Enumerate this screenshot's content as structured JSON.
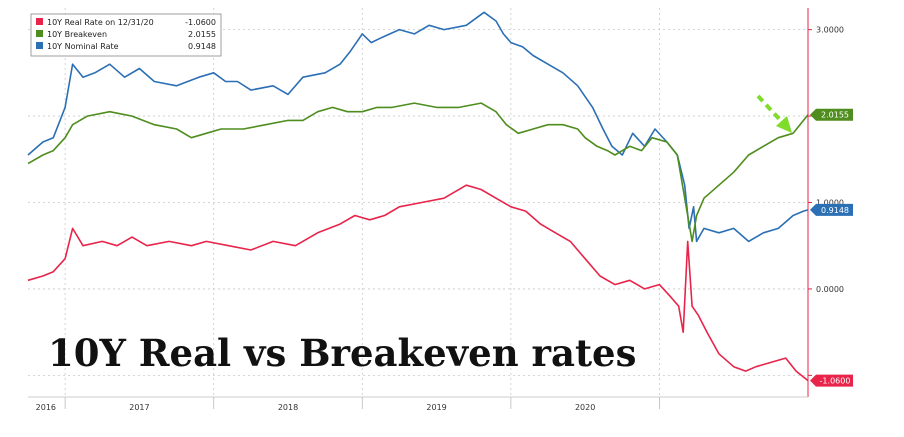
{
  "chart_data": {
    "type": "line",
    "title": "10Y Real vs Breakeven  rates",
    "x_ticks": [
      "2016",
      "2017",
      "2018",
      "2019",
      "2020"
    ],
    "y_ticks": [
      {
        "value": 3.0,
        "label": "3.0000"
      },
      {
        "value": 2.0,
        "label": ""
      },
      {
        "value": 1.0,
        "label": "1.0000"
      },
      {
        "value": 0.0,
        "label": "0.0000"
      },
      {
        "value": -1.0,
        "label": ""
      }
    ],
    "ylim": [
      -1.25,
      3.25
    ],
    "xlim": [
      2015.75,
      2021.0
    ],
    "legend_placement": "top-left",
    "legend": [
      {
        "label": "10Y Real Rate on 12/31/20",
        "value": "-1.0600",
        "color": "#e8244a"
      },
      {
        "label": "10Y Breakeven",
        "value": "2.0155",
        "color": "#4e8d1e"
      },
      {
        "label": "10Y Nominal Rate",
        "value": "0.9148",
        "color": "#2b6fb5"
      }
    ],
    "series": [
      {
        "key": "nominal",
        "color": "#2b6fb5",
        "last_label": "0.9148",
        "points": [
          [
            2015.75,
            1.55
          ],
          [
            2015.85,
            1.7
          ],
          [
            2015.92,
            1.75
          ],
          [
            2016.0,
            2.1
          ],
          [
            2016.05,
            2.6
          ],
          [
            2016.12,
            2.45
          ],
          [
            2016.2,
            2.5
          ],
          [
            2016.3,
            2.6
          ],
          [
            2016.4,
            2.45
          ],
          [
            2016.5,
            2.55
          ],
          [
            2016.6,
            2.4
          ],
          [
            2016.75,
            2.35
          ],
          [
            2016.9,
            2.45
          ],
          [
            2017.0,
            2.5
          ],
          [
            2017.08,
            2.4
          ],
          [
            2017.16,
            2.4
          ],
          [
            2017.25,
            2.3
          ],
          [
            2017.4,
            2.35
          ],
          [
            2017.5,
            2.25
          ],
          [
            2017.6,
            2.45
          ],
          [
            2017.75,
            2.5
          ],
          [
            2017.85,
            2.6
          ],
          [
            2017.92,
            2.75
          ],
          [
            2018.0,
            2.95
          ],
          [
            2018.06,
            2.85
          ],
          [
            2018.12,
            2.9
          ],
          [
            2018.25,
            3.0
          ],
          [
            2018.35,
            2.95
          ],
          [
            2018.45,
            3.05
          ],
          [
            2018.55,
            3.0
          ],
          [
            2018.7,
            3.05
          ],
          [
            2018.82,
            3.2
          ],
          [
            2018.9,
            3.1
          ],
          [
            2018.95,
            2.95
          ],
          [
            2019.0,
            2.85
          ],
          [
            2019.08,
            2.8
          ],
          [
            2019.15,
            2.7
          ],
          [
            2019.25,
            2.6
          ],
          [
            2019.35,
            2.5
          ],
          [
            2019.45,
            2.35
          ],
          [
            2019.55,
            2.1
          ],
          [
            2019.62,
            1.85
          ],
          [
            2019.68,
            1.65
          ],
          [
            2019.75,
            1.55
          ],
          [
            2019.82,
            1.8
          ],
          [
            2019.9,
            1.65
          ],
          [
            2019.97,
            1.85
          ],
          [
            2020.05,
            1.7
          ],
          [
            2020.12,
            1.55
          ],
          [
            2020.17,
            1.2
          ],
          [
            2020.2,
            0.7
          ],
          [
            2020.23,
            0.95
          ],
          [
            2020.25,
            0.55
          ],
          [
            2020.3,
            0.7
          ],
          [
            2020.4,
            0.65
          ],
          [
            2020.5,
            0.7
          ],
          [
            2020.6,
            0.55
          ],
          [
            2020.7,
            0.65
          ],
          [
            2020.8,
            0.7
          ],
          [
            2020.9,
            0.85
          ],
          [
            2020.97,
            0.9
          ],
          [
            2021.0,
            0.9148
          ]
        ]
      },
      {
        "key": "breakeven",
        "color": "#4e8d1e",
        "last_label": "2.0155",
        "points": [
          [
            2015.75,
            1.45
          ],
          [
            2015.85,
            1.55
          ],
          [
            2015.92,
            1.6
          ],
          [
            2016.0,
            1.75
          ],
          [
            2016.05,
            1.9
          ],
          [
            2016.15,
            2.0
          ],
          [
            2016.3,
            2.05
          ],
          [
            2016.45,
            2.0
          ],
          [
            2016.6,
            1.9
          ],
          [
            2016.75,
            1.85
          ],
          [
            2016.85,
            1.75
          ],
          [
            2016.95,
            1.8
          ],
          [
            2017.05,
            1.85
          ],
          [
            2017.2,
            1.85
          ],
          [
            2017.35,
            1.9
          ],
          [
            2017.5,
            1.95
          ],
          [
            2017.6,
            1.95
          ],
          [
            2017.7,
            2.05
          ],
          [
            2017.8,
            2.1
          ],
          [
            2017.9,
            2.05
          ],
          [
            2018.0,
            2.05
          ],
          [
            2018.1,
            2.1
          ],
          [
            2018.2,
            2.1
          ],
          [
            2018.35,
            2.15
          ],
          [
            2018.5,
            2.1
          ],
          [
            2018.65,
            2.1
          ],
          [
            2018.8,
            2.15
          ],
          [
            2018.9,
            2.05
          ],
          [
            2018.97,
            1.9
          ],
          [
            2019.05,
            1.8
          ],
          [
            2019.15,
            1.85
          ],
          [
            2019.25,
            1.9
          ],
          [
            2019.35,
            1.9
          ],
          [
            2019.45,
            1.85
          ],
          [
            2019.5,
            1.75
          ],
          [
            2019.58,
            1.65
          ],
          [
            2019.65,
            1.6
          ],
          [
            2019.7,
            1.55
          ],
          [
            2019.8,
            1.65
          ],
          [
            2019.88,
            1.6
          ],
          [
            2019.95,
            1.75
          ],
          [
            2020.05,
            1.7
          ],
          [
            2020.12,
            1.55
          ],
          [
            2020.18,
            0.95
          ],
          [
            2020.22,
            0.55
          ],
          [
            2020.25,
            0.85
          ],
          [
            2020.3,
            1.05
          ],
          [
            2020.4,
            1.2
          ],
          [
            2020.5,
            1.35
          ],
          [
            2020.6,
            1.55
          ],
          [
            2020.7,
            1.65
          ],
          [
            2020.8,
            1.75
          ],
          [
            2020.9,
            1.8
          ],
          [
            2020.97,
            1.95
          ],
          [
            2021.0,
            2.0155
          ]
        ]
      },
      {
        "key": "real",
        "color": "#e8244a",
        "last_label": "-1.0600",
        "points": [
          [
            2015.75,
            0.1
          ],
          [
            2015.85,
            0.15
          ],
          [
            2015.92,
            0.2
          ],
          [
            2016.0,
            0.35
          ],
          [
            2016.05,
            0.7
          ],
          [
            2016.12,
            0.5
          ],
          [
            2016.25,
            0.55
          ],
          [
            2016.35,
            0.5
          ],
          [
            2016.45,
            0.6
          ],
          [
            2016.55,
            0.5
          ],
          [
            2016.7,
            0.55
          ],
          [
            2016.85,
            0.5
          ],
          [
            2016.95,
            0.55
          ],
          [
            2017.1,
            0.5
          ],
          [
            2017.25,
            0.45
          ],
          [
            2017.4,
            0.55
          ],
          [
            2017.55,
            0.5
          ],
          [
            2017.7,
            0.65
          ],
          [
            2017.85,
            0.75
          ],
          [
            2017.95,
            0.85
          ],
          [
            2018.05,
            0.8
          ],
          [
            2018.15,
            0.85
          ],
          [
            2018.25,
            0.95
          ],
          [
            2018.4,
            1.0
          ],
          [
            2018.55,
            1.05
          ],
          [
            2018.7,
            1.2
          ],
          [
            2018.8,
            1.15
          ],
          [
            2018.9,
            1.05
          ],
          [
            2019.0,
            0.95
          ],
          [
            2019.1,
            0.9
          ],
          [
            2019.2,
            0.75
          ],
          [
            2019.3,
            0.65
          ],
          [
            2019.4,
            0.55
          ],
          [
            2019.5,
            0.35
          ],
          [
            2019.6,
            0.15
          ],
          [
            2019.7,
            0.05
          ],
          [
            2019.8,
            0.1
          ],
          [
            2019.9,
            0.0
          ],
          [
            2020.0,
            0.05
          ],
          [
            2020.08,
            -0.1
          ],
          [
            2020.13,
            -0.2
          ],
          [
            2020.16,
            -0.5
          ],
          [
            2020.19,
            0.55
          ],
          [
            2020.22,
            -0.2
          ],
          [
            2020.26,
            -0.3
          ],
          [
            2020.32,
            -0.5
          ],
          [
            2020.4,
            -0.75
          ],
          [
            2020.5,
            -0.9
          ],
          [
            2020.58,
            -0.95
          ],
          [
            2020.65,
            -0.9
          ],
          [
            2020.75,
            -0.85
          ],
          [
            2020.85,
            -0.8
          ],
          [
            2020.92,
            -0.95
          ],
          [
            2021.0,
            -1.06
          ]
        ]
      }
    ]
  },
  "colors": {
    "real": "#e8244a",
    "breakeven": "#4e8d1e",
    "nominal": "#2b6fb5",
    "arrow": "#7fdc2a"
  }
}
